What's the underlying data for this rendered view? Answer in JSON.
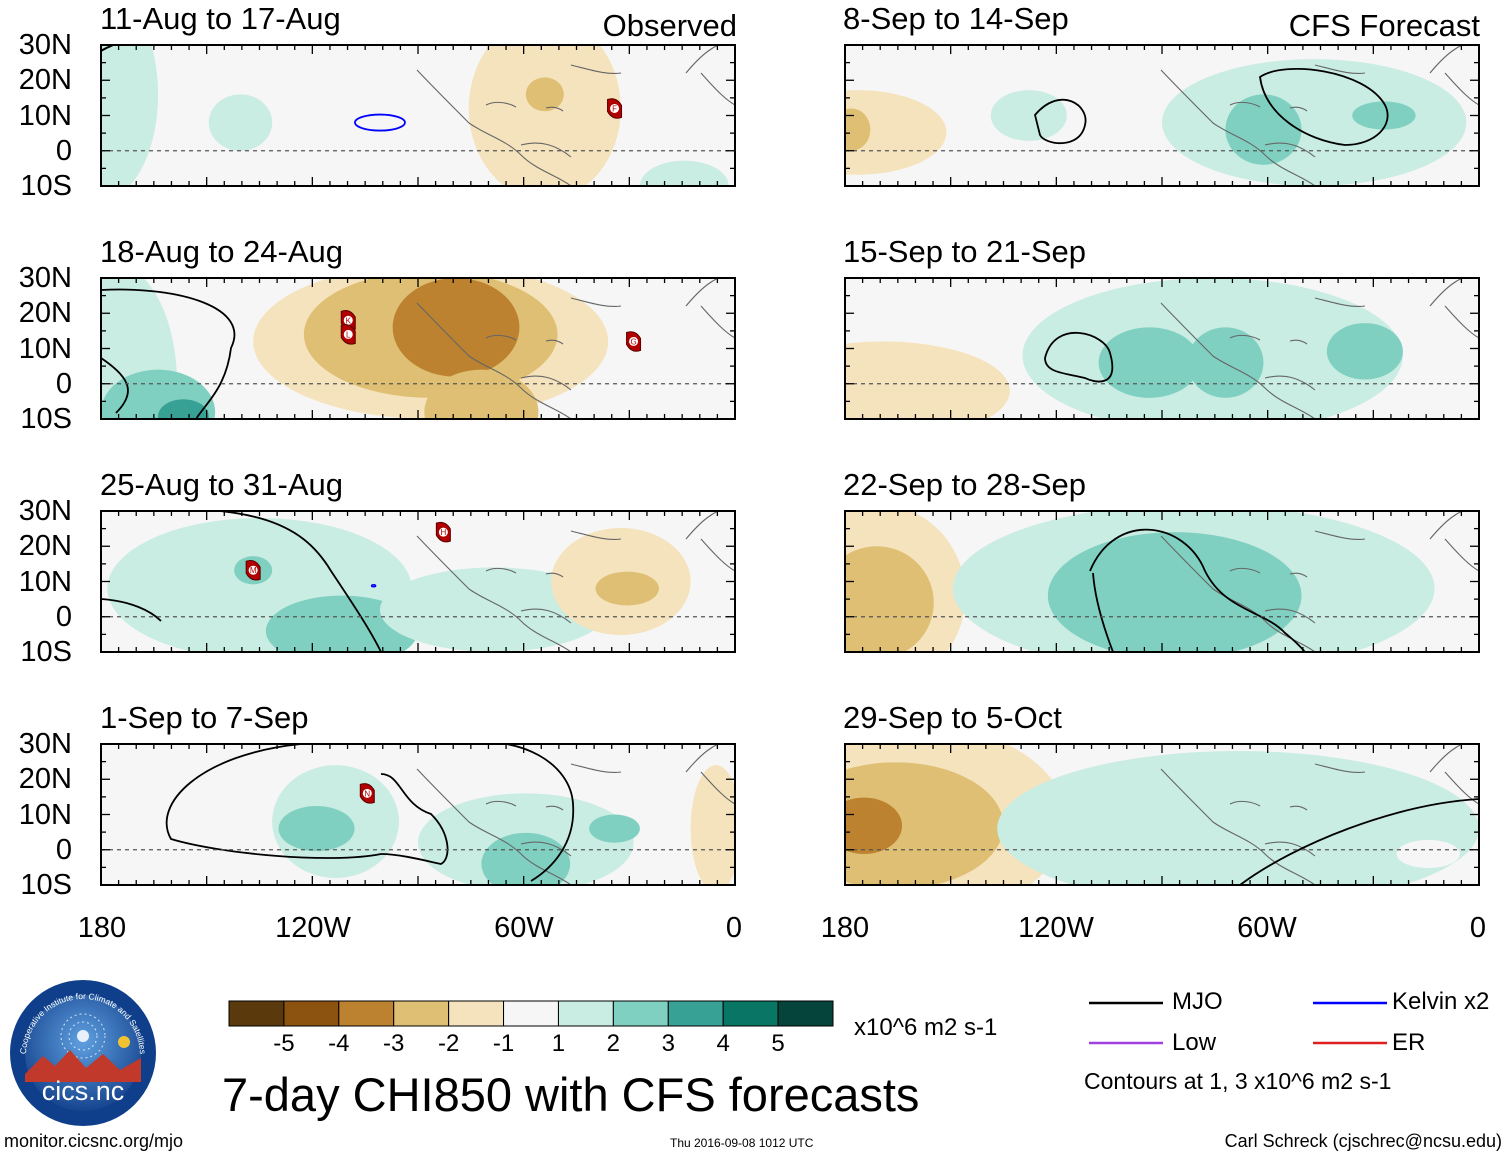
{
  "panels": [
    {
      "title": "11-Aug to 17-Aug",
      "corner": "Observed"
    },
    {
      "title": "18-Aug to 24-Aug",
      "corner": ""
    },
    {
      "title": "25-Aug to 31-Aug",
      "corner": ""
    },
    {
      "title": "1-Sep to 7-Sep",
      "corner": ""
    },
    {
      "title": "8-Sep to 14-Sep",
      "corner": "CFS Forecast"
    },
    {
      "title": "15-Sep to 21-Sep",
      "corner": ""
    },
    {
      "title": "22-Sep to 28-Sep",
      "corner": ""
    },
    {
      "title": "29-Sep to 5-Oct",
      "corner": ""
    }
  ],
  "lat_labels": [
    "30N",
    "20N",
    "10N",
    "0",
    "10S"
  ],
  "lon_labels": [
    "180",
    "120W",
    "60W",
    "0"
  ],
  "storm_letters": [
    "F",
    "K",
    "L",
    "G",
    "M",
    "H",
    "N"
  ],
  "colorbar": {
    "colors": [
      "#5a3a0c",
      "#8c520f",
      "#bc8230",
      "#dfbf73",
      "#f5e3bd",
      "#f6f6f6",
      "#c9ece3",
      "#80d0c1",
      "#38a195",
      "#087565",
      "#05443a"
    ],
    "ticks": [
      "-5",
      "-4",
      "-3",
      "-2",
      "-1",
      "1",
      "2",
      "3",
      "4",
      "5"
    ],
    "units": "x10^6 m2 s-1"
  },
  "main_title": "7-day CHI850 with CFS forecasts",
  "legend": {
    "mjo": {
      "label": "MJO",
      "color": "#000000"
    },
    "kelvin": {
      "label": "Kelvin x2",
      "color": "#0000ff"
    },
    "low": {
      "label": "Low",
      "color": "#a040e0"
    },
    "er": {
      "label": "ER",
      "color": "#e02020"
    },
    "contours_note": "Contours at 1, 3 x10^6 m2 s-1"
  },
  "logo_text": "cics.nc",
  "logo_ring_text": "Cooperative Institute for Climate and Satellites",
  "footer": {
    "left": "monitor.cicsnc.org/mjo",
    "center": "Thu 2016-09-08 1012 UTC",
    "right": "Carl Schreck (cjschrec@ncsu.edu)"
  }
}
